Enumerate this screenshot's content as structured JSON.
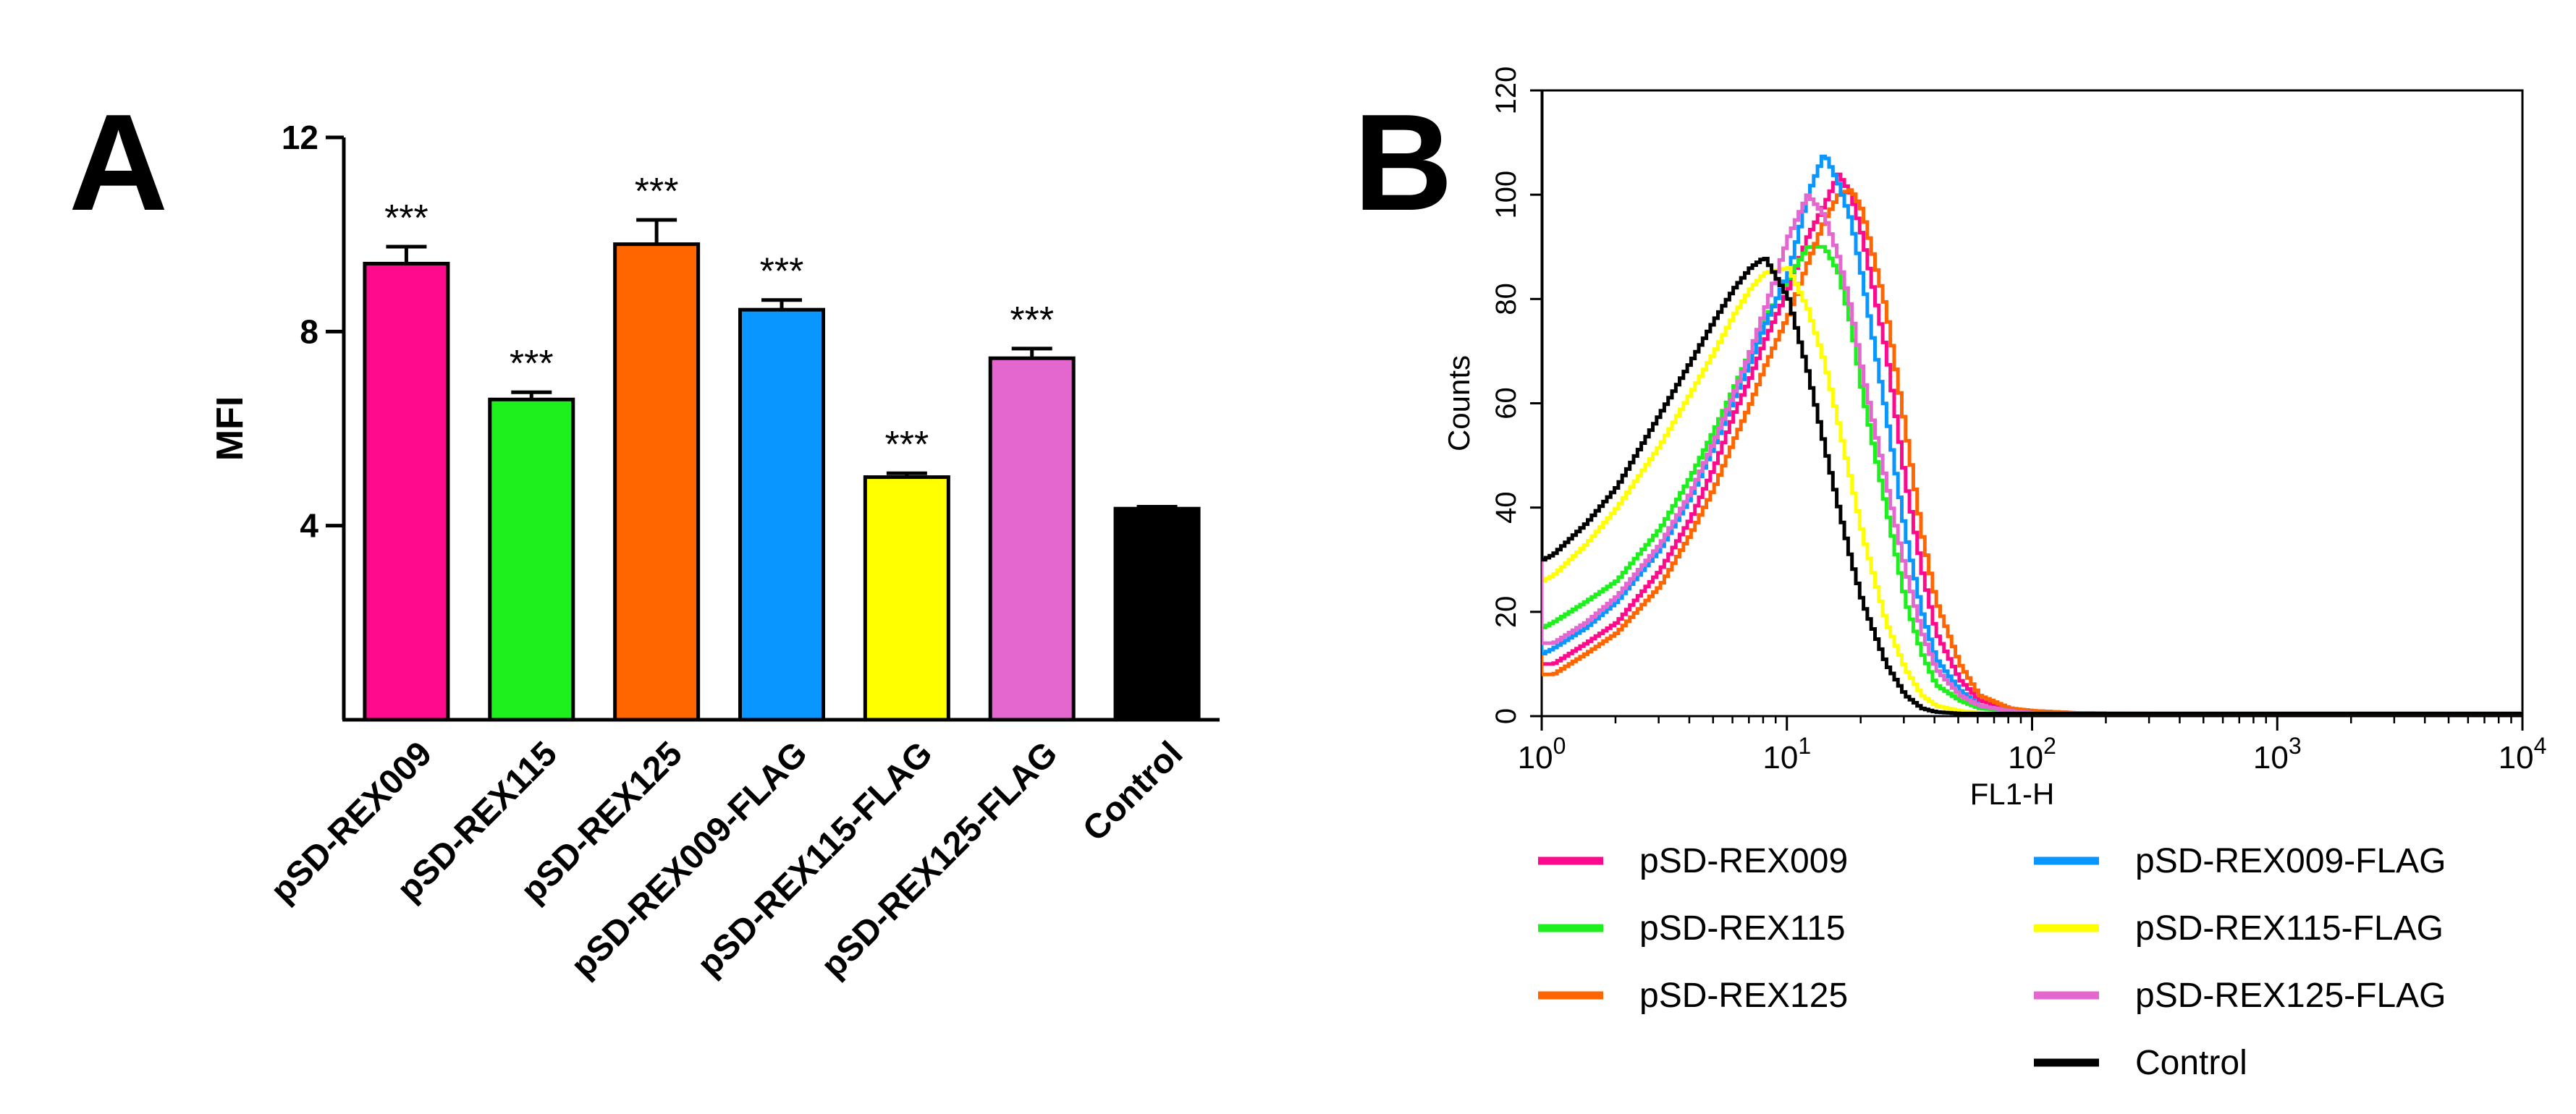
{
  "figure": {
    "panel_a_label": "A",
    "panel_b_label": "B"
  },
  "chart_data": [
    {
      "id": "panel-a",
      "type": "bar",
      "title": "",
      "xlabel": "",
      "ylabel": "MFI",
      "ylim": [
        0,
        12
      ],
      "yticks": [
        4,
        8,
        12
      ],
      "categories": [
        "pSD-REX009",
        "pSD-REX115",
        "pSD-REX125",
        "pSD-REX009-FLAG",
        "pSD-REX115-FLAG",
        "pSD-REX125-FLAG",
        "Control"
      ],
      "values": [
        9.4,
        6.6,
        9.8,
        8.45,
        5.0,
        7.45,
        4.35
      ],
      "errors": [
        0.35,
        0.15,
        0.5,
        0.2,
        0.08,
        0.2,
        0.04
      ],
      "colors": [
        "#ff0a8c",
        "#1ef01e",
        "#ff6600",
        "#0a96ff",
        "#ffff00",
        "#e466cf",
        "#000000"
      ],
      "annotations": [
        "***",
        "***",
        "***",
        "***",
        "***",
        "***",
        ""
      ]
    },
    {
      "id": "panel-b",
      "type": "line",
      "title": "",
      "xlabel": "FL1-H",
      "ylabel": "Counts",
      "xscale": "log",
      "xlim": [
        1,
        10000
      ],
      "ylim": [
        0,
        120
      ],
      "xticks": [
        {
          "base": "10",
          "exp": "0"
        },
        {
          "base": "10",
          "exp": "1"
        },
        {
          "base": "10",
          "exp": "2"
        },
        {
          "base": "10",
          "exp": "3"
        },
        {
          "base": "10",
          "exp": "4"
        }
      ],
      "yticks": [
        0,
        20,
        40,
        60,
        80,
        100,
        120
      ],
      "series": [
        {
          "name": "pSD-REX009",
          "color": "#ff0a8c",
          "x": [
            1,
            1.1,
            1.5,
            2,
            3,
            4,
            5,
            6,
            7,
            8,
            10,
            12,
            14,
            16,
            18,
            20,
            25,
            30,
            35,
            40,
            50,
            60,
            80,
            100,
            150,
            300,
            1000,
            5000,
            10000
          ],
          "y": [
            10,
            10,
            14,
            18,
            28,
            38,
            48,
            58,
            65,
            72,
            82,
            92,
            98,
            104,
            100,
            92,
            70,
            45,
            28,
            16,
            7,
            3,
            1.5,
            1,
            0.6,
            0.5,
            0.5,
            0.5,
            0.5
          ]
        },
        {
          "name": "pSD-REX115",
          "color": "#1ef01e",
          "x": [
            1,
            1.1,
            1.5,
            2,
            3,
            4,
            5,
            6,
            7,
            8,
            10,
            12,
            14,
            16,
            18,
            20,
            25,
            30,
            35,
            40,
            50,
            60,
            80,
            100,
            150,
            300,
            1000,
            5000,
            10000
          ],
          "y": [
            17,
            18,
            22,
            26,
            36,
            46,
            55,
            63,
            70,
            76,
            84,
            90,
            90,
            85,
            75,
            62,
            40,
            22,
            12,
            6,
            3,
            1.5,
            1,
            0.6,
            0.5,
            0.5,
            0.5,
            0.5,
            0.5
          ]
        },
        {
          "name": "pSD-REX125",
          "color": "#ff6600",
          "x": [
            1,
            1.1,
            1.5,
            2,
            3,
            4,
            5,
            6,
            7,
            8,
            10,
            12,
            14,
            16,
            18,
            20,
            25,
            30,
            35,
            40,
            50,
            60,
            80,
            100,
            150,
            300,
            1000,
            5000,
            10000
          ],
          "y": [
            8,
            8,
            12,
            16,
            25,
            35,
            44,
            53,
            60,
            67,
            77,
            87,
            95,
            100,
            101,
            97,
            78,
            55,
            35,
            22,
            10,
            4,
            1.5,
            1,
            0.6,
            0.5,
            0.5,
            0.5,
            0.5
          ]
        },
        {
          "name": "pSD-REX009-FLAG",
          "color": "#0a96ff",
          "x": [
            1,
            1.1,
            1.5,
            2,
            3,
            4,
            5,
            6,
            7,
            8,
            10,
            12,
            14,
            16,
            18,
            20,
            25,
            30,
            35,
            40,
            50,
            60,
            80,
            100,
            150,
            300,
            1000,
            5000,
            10000
          ],
          "y": [
            12,
            13,
            17,
            22,
            32,
            42,
            52,
            61,
            68,
            75,
            85,
            100,
            108,
            102,
            95,
            84,
            58,
            35,
            20,
            11,
            5,
            2,
            1,
            0.6,
            0.5,
            0.5,
            0.5,
            0.5,
            0.5
          ]
        },
        {
          "name": "pSD-REX115-FLAG",
          "color": "#ffff00",
          "x": [
            1,
            1.1,
            1.5,
            2,
            3,
            4,
            5,
            6,
            7,
            8,
            10,
            12,
            14,
            16,
            18,
            20,
            25,
            30,
            35,
            40,
            50,
            60,
            80,
            100,
            150,
            300,
            1000,
            5000,
            10000
          ],
          "y": [
            26,
            27,
            33,
            40,
            52,
            62,
            70,
            77,
            82,
            85,
            86,
            78,
            68,
            56,
            45,
            35,
            18,
            9,
            4,
            2,
            1,
            0.6,
            0.5,
            0.5,
            0.5,
            0.5,
            0.5,
            0.5,
            0.5
          ]
        },
        {
          "name": "pSD-REX125-FLAG",
          "color": "#e466cf",
          "x": [
            1,
            1.1,
            1.5,
            2,
            3,
            4,
            5,
            6,
            7,
            8,
            10,
            12,
            14,
            16,
            18,
            20,
            25,
            30,
            35,
            40,
            50,
            60,
            80,
            100,
            150,
            300,
            1000,
            5000,
            10000
          ],
          "y": [
            14,
            14,
            18,
            23,
            33,
            43,
            53,
            62,
            70,
            78,
            92,
            100,
            96,
            88,
            78,
            66,
            45,
            28,
            16,
            9,
            4,
            2,
            1,
            0.6,
            0.5,
            0.5,
            0.5,
            0.5,
            0.5
          ]
        },
        {
          "name": "Control",
          "color": "#000000",
          "x": [
            1,
            1.1,
            1.5,
            2,
            3,
            4,
            5,
            6,
            7,
            8,
            10,
            12,
            14,
            16,
            18,
            20,
            25,
            30,
            35,
            40,
            50,
            60,
            80,
            100,
            150,
            300,
            1000,
            5000,
            10000
          ],
          "y": [
            30,
            31,
            37,
            44,
            58,
            68,
            76,
            82,
            86,
            88,
            80,
            66,
            52,
            40,
            30,
            22,
            10,
            4,
            1.5,
            0.8,
            0.5,
            0.5,
            0.5,
            0.5,
            0.5,
            0.5,
            0.5,
            0.5,
            0.5
          ]
        }
      ],
      "legend": {
        "placement": "bottom",
        "columns": [
          [
            "pSD-REX009",
            "pSD-REX115",
            "pSD-REX125"
          ],
          [
            "pSD-REX009-FLAG",
            "pSD-REX115-FLAG",
            "pSD-REX125-FLAG",
            "Control"
          ]
        ]
      }
    }
  ]
}
